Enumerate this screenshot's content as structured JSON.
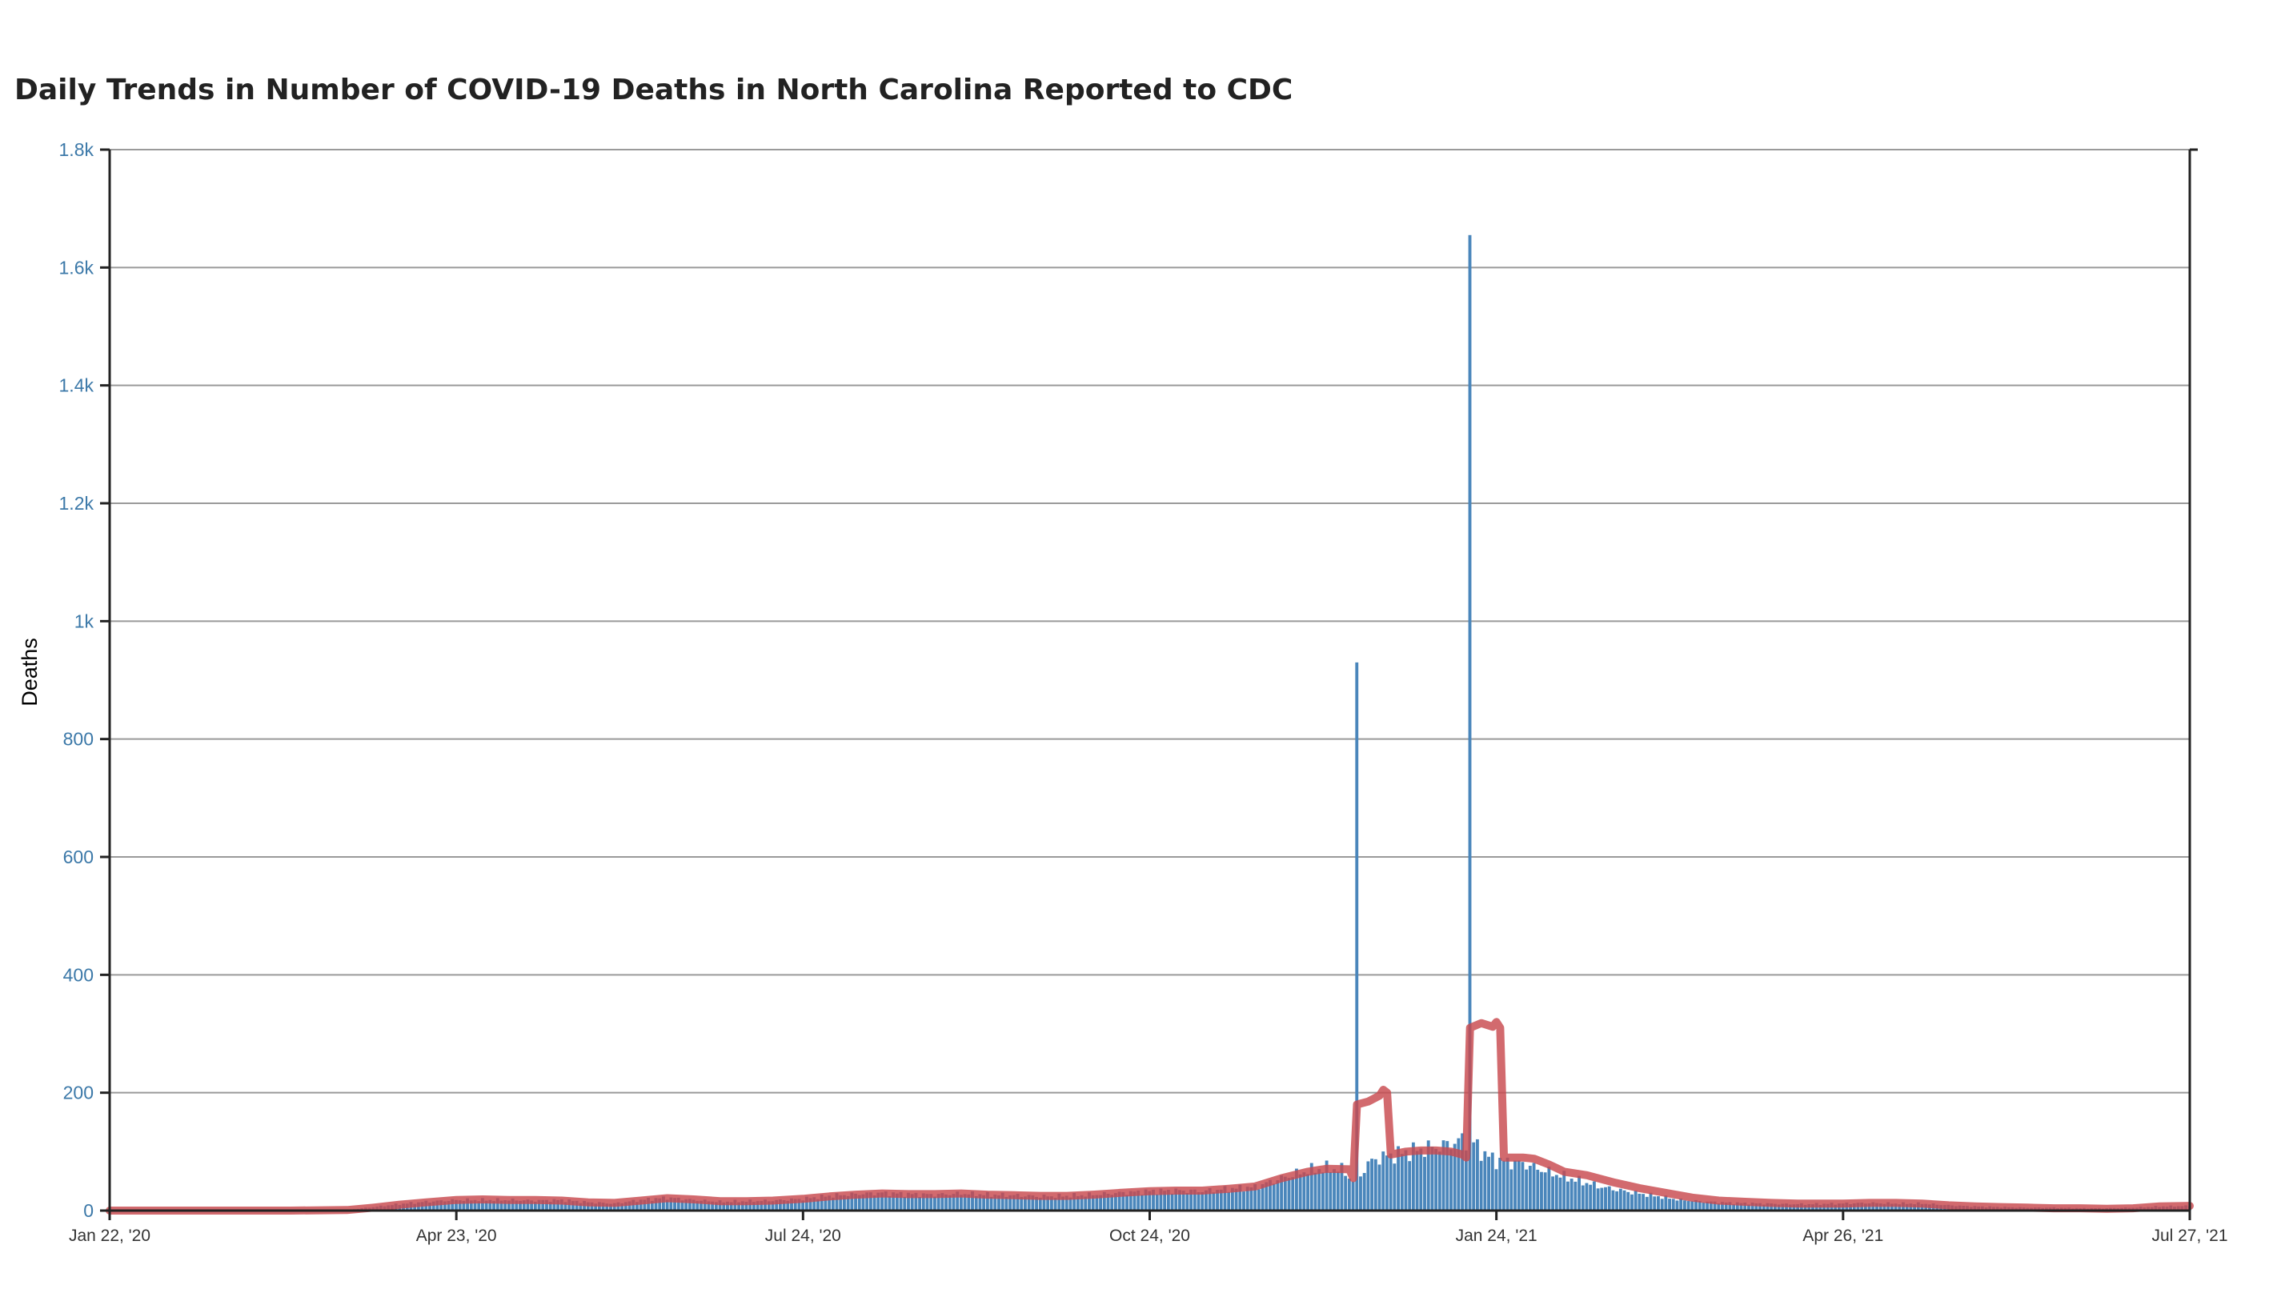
{
  "chart_data": {
    "type": "bar",
    "title": "Daily Trends in Number of COVID-19 Deaths in North Carolina Reported to CDC",
    "xlabel": "",
    "ylabel": "Deaths",
    "ylim": [
      0,
      1800
    ],
    "xlim": [
      "2020-01-22",
      "2021-07-27"
    ],
    "yticks": [
      {
        "value": 0,
        "label": "0"
      },
      {
        "value": 200,
        "label": "200"
      },
      {
        "value": 400,
        "label": "400"
      },
      {
        "value": 600,
        "label": "600"
      },
      {
        "value": 800,
        "label": "800"
      },
      {
        "value": 1000,
        "label": "1k"
      },
      {
        "value": 1200,
        "label": "1.2k"
      },
      {
        "value": 1400,
        "label": "1.4k"
      },
      {
        "value": 1600,
        "label": "1.6k"
      },
      {
        "value": 1800,
        "label": "1.8k"
      }
    ],
    "xticks": [
      {
        "date": "2020-01-22",
        "label": "Jan 22, '20"
      },
      {
        "date": "2020-04-23",
        "label": "Apr 23, '20"
      },
      {
        "date": "2020-07-24",
        "label": "Jul 24, '20"
      },
      {
        "date": "2020-10-24",
        "label": "Oct 24, '20"
      },
      {
        "date": "2021-01-24",
        "label": "Jan 24, '21"
      },
      {
        "date": "2021-04-26",
        "label": "Apr 26, '21"
      },
      {
        "date": "2021-07-27",
        "label": "Jul 27, '21"
      }
    ],
    "grid": true,
    "series": [
      {
        "type": "bar",
        "color": "#4a86bb",
        "points": [
          [
            "2020-01-22",
            0
          ],
          [
            "2020-02-15",
            0
          ],
          [
            "2020-03-10",
            0
          ],
          [
            "2020-03-25",
            1
          ],
          [
            "2020-04-01",
            6
          ],
          [
            "2020-04-08",
            11
          ],
          [
            "2020-04-15",
            15
          ],
          [
            "2020-04-23",
            18
          ],
          [
            "2020-04-30",
            18
          ],
          [
            "2020-05-07",
            18
          ],
          [
            "2020-05-14",
            17
          ],
          [
            "2020-05-21",
            18
          ],
          [
            "2020-05-28",
            14
          ],
          [
            "2020-06-04",
            12
          ],
          [
            "2020-06-11",
            18
          ],
          [
            "2020-06-18",
            22
          ],
          [
            "2020-06-25",
            18
          ],
          [
            "2020-07-02",
            15
          ],
          [
            "2020-07-09",
            16
          ],
          [
            "2020-07-16",
            17
          ],
          [
            "2020-07-24",
            20
          ],
          [
            "2020-07-31",
            25
          ],
          [
            "2020-08-07",
            28
          ],
          [
            "2020-08-14",
            30
          ],
          [
            "2020-08-21",
            28
          ],
          [
            "2020-08-28",
            27
          ],
          [
            "2020-09-04",
            29
          ],
          [
            "2020-09-11",
            27
          ],
          [
            "2020-09-18",
            26
          ],
          [
            "2020-09-25",
            24
          ],
          [
            "2020-10-02",
            25
          ],
          [
            "2020-10-09",
            27
          ],
          [
            "2020-10-16",
            30
          ],
          [
            "2020-10-24",
            33
          ],
          [
            "2020-10-31",
            34
          ],
          [
            "2020-11-07",
            33
          ],
          [
            "2020-11-14",
            37
          ],
          [
            "2020-11-21",
            40
          ],
          [
            "2020-11-28",
            55
          ],
          [
            "2020-12-05",
            68
          ],
          [
            "2020-12-10",
            72
          ],
          [
            "2020-12-14",
            70
          ],
          [
            "2020-12-17",
            50
          ],
          [
            "2020-12-18",
            930
          ],
          [
            "2020-12-19",
            60
          ],
          [
            "2020-12-21",
            80
          ],
          [
            "2020-12-24",
            90
          ],
          [
            "2020-12-28",
            95
          ],
          [
            "2021-01-01",
            100
          ],
          [
            "2021-01-05",
            105
          ],
          [
            "2021-01-10",
            110
          ],
          [
            "2021-01-15",
            120
          ],
          [
            "2021-01-17",
            1655
          ],
          [
            "2021-01-18",
            115
          ],
          [
            "2021-01-21",
            95
          ],
          [
            "2021-01-24",
            85
          ],
          [
            "2021-01-31",
            80
          ],
          [
            "2021-02-07",
            65
          ],
          [
            "2021-02-14",
            52
          ],
          [
            "2021-02-21",
            40
          ],
          [
            "2021-02-28",
            32
          ],
          [
            "2021-03-07",
            25
          ],
          [
            "2021-03-14",
            18
          ],
          [
            "2021-03-21",
            15
          ],
          [
            "2021-03-28",
            13
          ],
          [
            "2021-04-04",
            12
          ],
          [
            "2021-04-11",
            11
          ],
          [
            "2021-04-18",
            11
          ],
          [
            "2021-04-26",
            12
          ],
          [
            "2021-05-03",
            13
          ],
          [
            "2021-05-10",
            12
          ],
          [
            "2021-05-17",
            12
          ],
          [
            "2021-05-24",
            9
          ],
          [
            "2021-05-31",
            7
          ],
          [
            "2021-06-07",
            6
          ],
          [
            "2021-06-14",
            5
          ],
          [
            "2021-06-21",
            5
          ],
          [
            "2021-06-28",
            4
          ],
          [
            "2021-07-05",
            4
          ],
          [
            "2021-07-12",
            5
          ],
          [
            "2021-07-19",
            7
          ],
          [
            "2021-07-27",
            8
          ]
        ]
      },
      {
        "type": "line",
        "color": "#c8494e",
        "points": [
          [
            "2020-01-22",
            0
          ],
          [
            "2020-03-10",
            0
          ],
          [
            "2020-03-25",
            1
          ],
          [
            "2020-04-01",
            5
          ],
          [
            "2020-04-08",
            10
          ],
          [
            "2020-04-15",
            14
          ],
          [
            "2020-04-23",
            18
          ],
          [
            "2020-04-30",
            19
          ],
          [
            "2020-05-07",
            18
          ],
          [
            "2020-05-14",
            18
          ],
          [
            "2020-05-21",
            17
          ],
          [
            "2020-05-28",
            14
          ],
          [
            "2020-06-04",
            13
          ],
          [
            "2020-06-11",
            17
          ],
          [
            "2020-06-18",
            21
          ],
          [
            "2020-06-25",
            19
          ],
          [
            "2020-07-02",
            16
          ],
          [
            "2020-07-09",
            16
          ],
          [
            "2020-07-16",
            17
          ],
          [
            "2020-07-24",
            20
          ],
          [
            "2020-07-31",
            24
          ],
          [
            "2020-08-07",
            27
          ],
          [
            "2020-08-14",
            29
          ],
          [
            "2020-08-21",
            28
          ],
          [
            "2020-08-28",
            28
          ],
          [
            "2020-09-04",
            29
          ],
          [
            "2020-09-11",
            27
          ],
          [
            "2020-09-18",
            26
          ],
          [
            "2020-09-25",
            25
          ],
          [
            "2020-10-02",
            25
          ],
          [
            "2020-10-09",
            27
          ],
          [
            "2020-10-16",
            30
          ],
          [
            "2020-10-24",
            33
          ],
          [
            "2020-10-31",
            34
          ],
          [
            "2020-11-07",
            34
          ],
          [
            "2020-11-14",
            37
          ],
          [
            "2020-11-21",
            41
          ],
          [
            "2020-11-28",
            55
          ],
          [
            "2020-12-05",
            66
          ],
          [
            "2020-12-10",
            71
          ],
          [
            "2020-12-16",
            70
          ],
          [
            "2020-12-17",
            55
          ],
          [
            "2020-12-18",
            180
          ],
          [
            "2020-12-21",
            185
          ],
          [
            "2020-12-24",
            195
          ],
          [
            "2020-12-25",
            205
          ],
          [
            "2020-12-26",
            200
          ],
          [
            "2020-12-27",
            95
          ],
          [
            "2020-12-31",
            100
          ],
          [
            "2021-01-04",
            102
          ],
          [
            "2021-01-08",
            102
          ],
          [
            "2021-01-12",
            100
          ],
          [
            "2021-01-15",
            95
          ],
          [
            "2021-01-16",
            90
          ],
          [
            "2021-01-17",
            310
          ],
          [
            "2021-01-20",
            318
          ],
          [
            "2021-01-23",
            312
          ],
          [
            "2021-01-24",
            320
          ],
          [
            "2021-01-25",
            310
          ],
          [
            "2021-01-26",
            90
          ],
          [
            "2021-01-31",
            90
          ],
          [
            "2021-02-03",
            88
          ],
          [
            "2021-02-07",
            78
          ],
          [
            "2021-02-11",
            66
          ],
          [
            "2021-02-17",
            60
          ],
          [
            "2021-02-24",
            48
          ],
          [
            "2021-03-03",
            38
          ],
          [
            "2021-03-10",
            30
          ],
          [
            "2021-03-17",
            22
          ],
          [
            "2021-03-24",
            17
          ],
          [
            "2021-03-31",
            15
          ],
          [
            "2021-04-07",
            13
          ],
          [
            "2021-04-14",
            12
          ],
          [
            "2021-04-21",
            12
          ],
          [
            "2021-04-26",
            12
          ],
          [
            "2021-05-03",
            13
          ],
          [
            "2021-05-10",
            13
          ],
          [
            "2021-05-17",
            12
          ],
          [
            "2021-05-24",
            9
          ],
          [
            "2021-05-31",
            7
          ],
          [
            "2021-06-07",
            6
          ],
          [
            "2021-06-14",
            5
          ],
          [
            "2021-06-21",
            4
          ],
          [
            "2021-06-28",
            4
          ],
          [
            "2021-07-05",
            3
          ],
          [
            "2021-07-12",
            4
          ],
          [
            "2021-07-19",
            7
          ],
          [
            "2021-07-27",
            8
          ]
        ]
      }
    ]
  }
}
